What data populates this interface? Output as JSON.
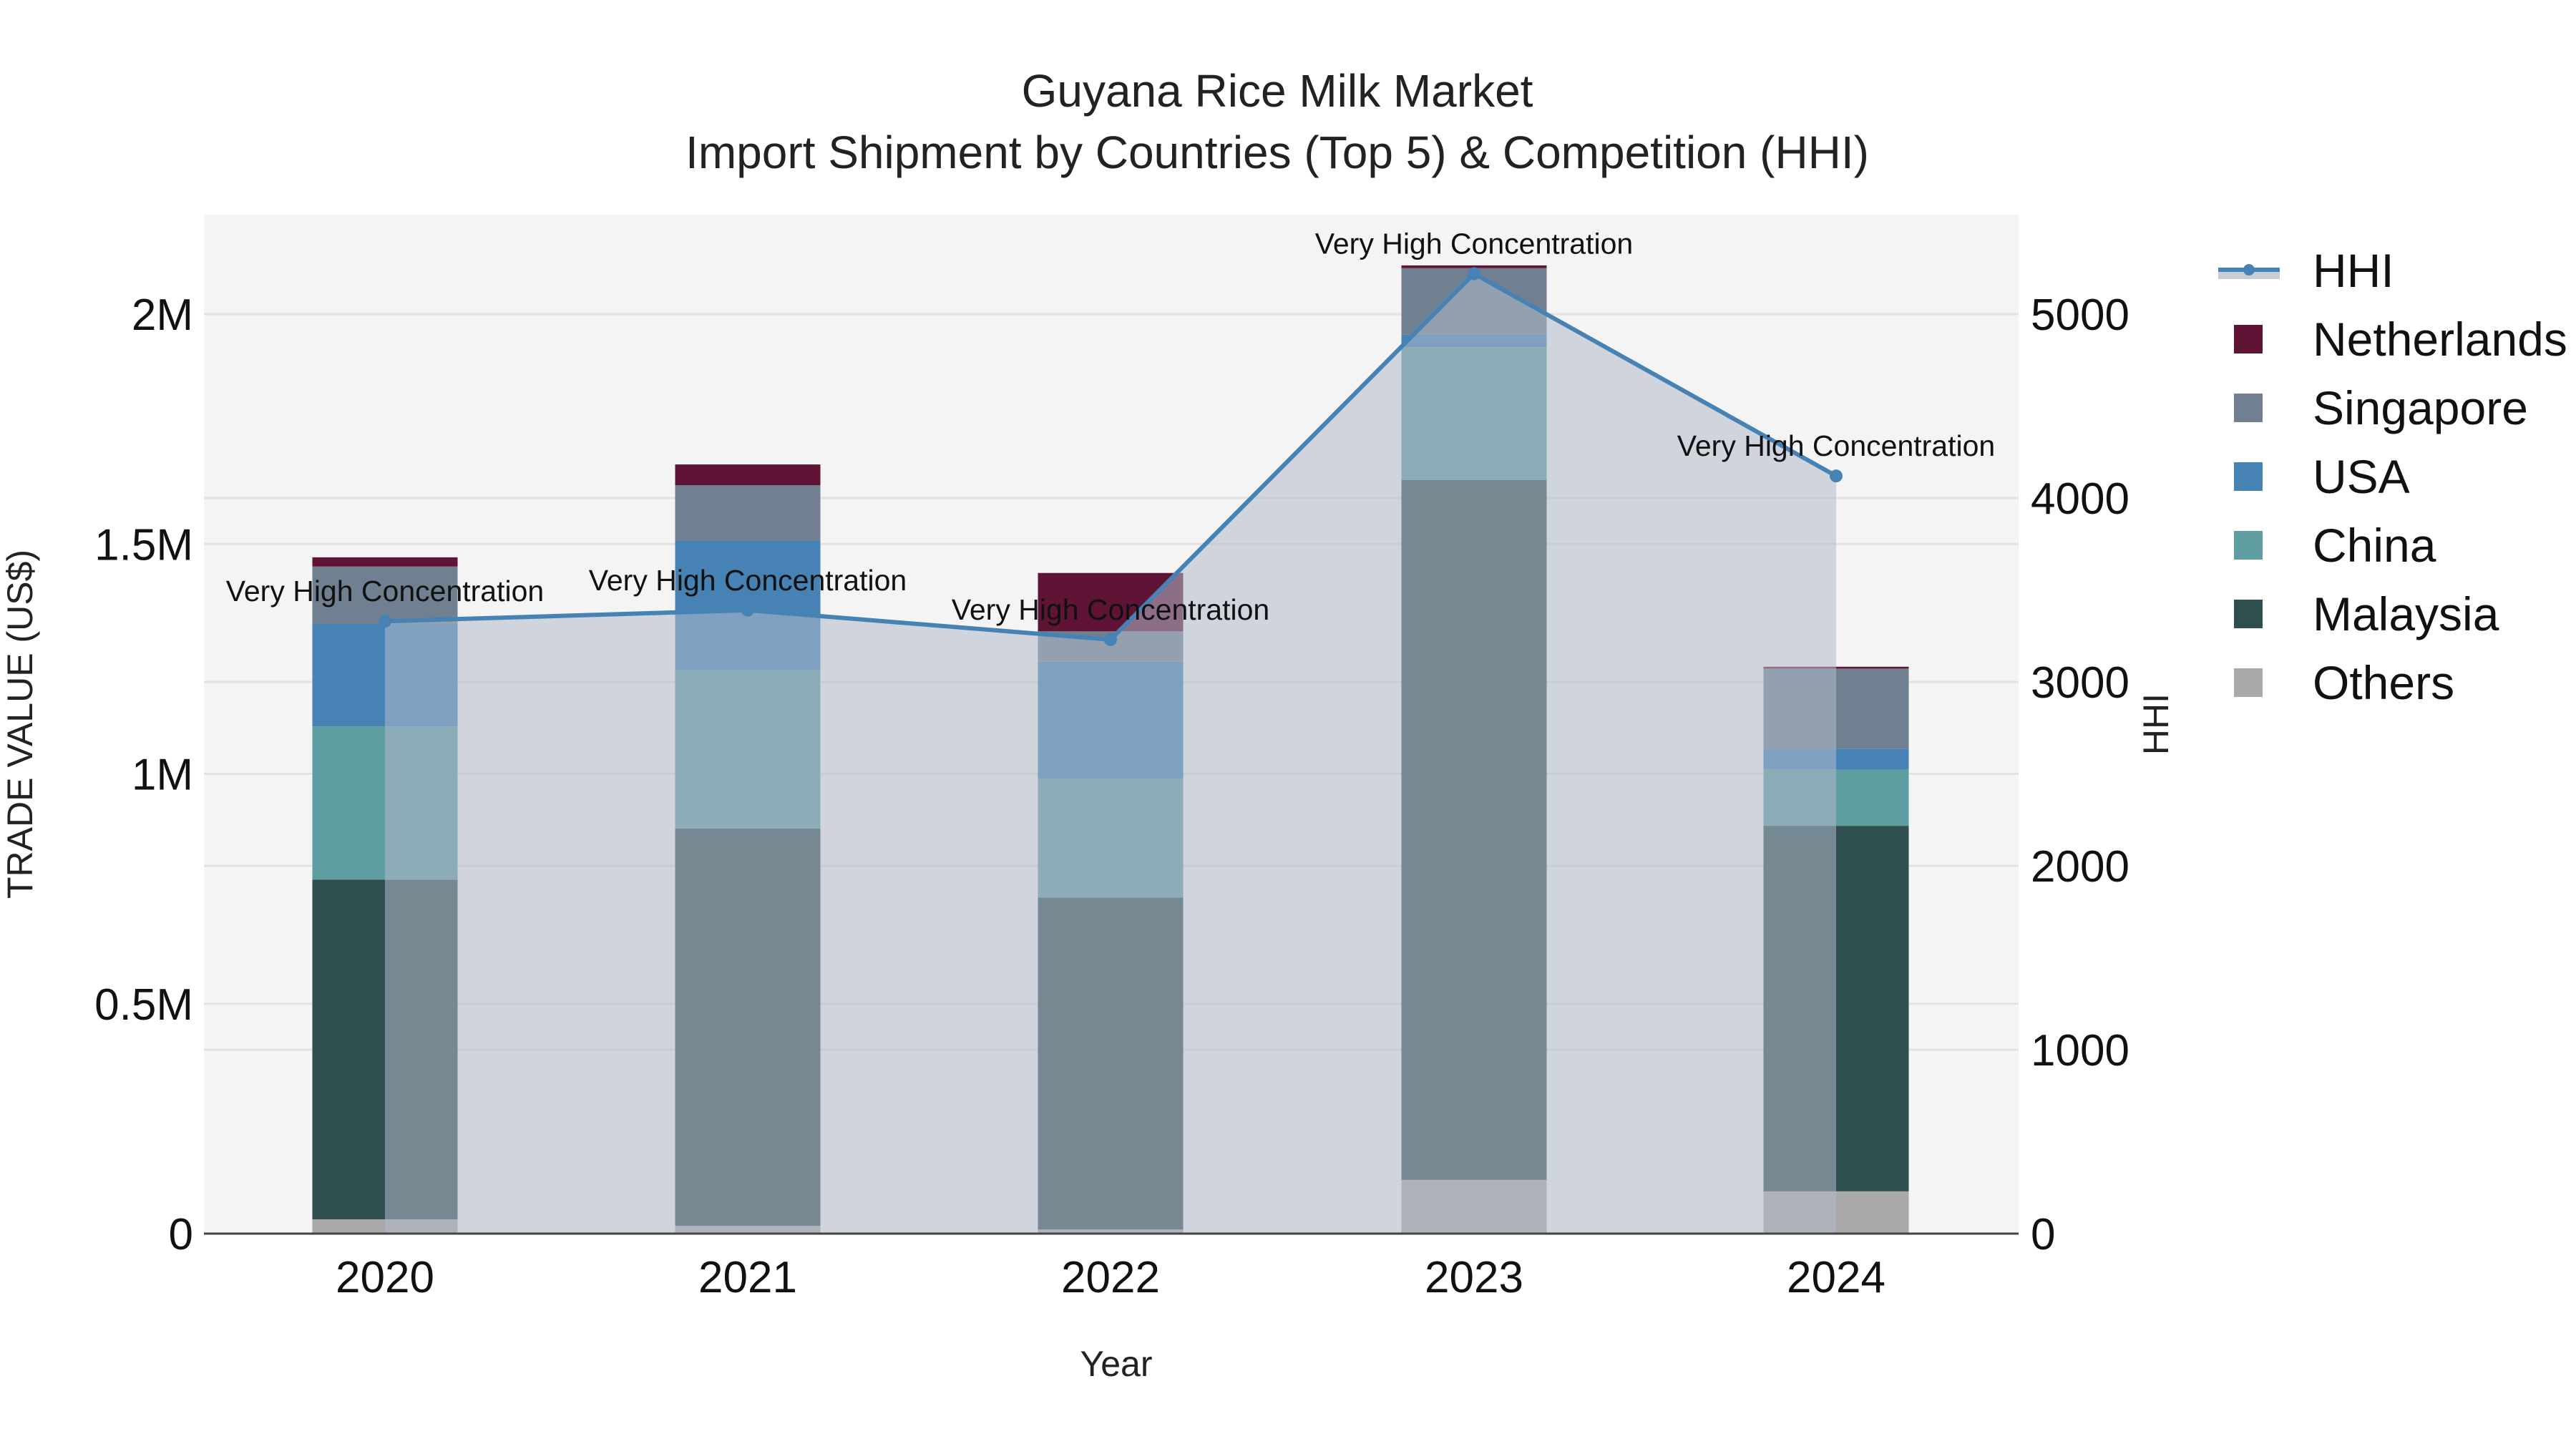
{
  "header": {
    "title": "Guyana Rice Milk Market",
    "subtitle": "Import Shipment by Countries (Top 5) & Competition (HHI)"
  },
  "axes": {
    "x_label": "Year",
    "y_left_label": "TRADE VALUE (US$)",
    "y_right_label": "HHI",
    "y_left_ticks": [
      "0",
      "0.5M",
      "1M",
      "1.5M",
      "2M"
    ],
    "y_right_ticks": [
      "0",
      "1000",
      "2000",
      "3000",
      "4000",
      "5000"
    ],
    "x_ticks": [
      "2020",
      "2021",
      "2022",
      "2023",
      "2024"
    ]
  },
  "legend": [
    {
      "label": "HHI",
      "type": "line",
      "color": "#4682b4"
    },
    {
      "label": "Netherlands",
      "type": "bar",
      "color": "#5f1335"
    },
    {
      "label": "Singapore",
      "type": "bar",
      "color": "#708090"
    },
    {
      "label": "USA",
      "type": "bar",
      "color": "#4682b4"
    },
    {
      "label": "China",
      "type": "bar",
      "color": "#5f9ea0"
    },
    {
      "label": "Malaysia",
      "type": "bar",
      "color": "#2f4f4f"
    },
    {
      "label": "Others",
      "type": "bar",
      "color": "#a9a9a9"
    }
  ],
  "annotation_label": "Very High Concentration",
  "chart_data": {
    "type": "bar",
    "stacked": true,
    "title": "Guyana Rice Milk Market — Import Shipment by Countries (Top 5) & Competition (HHI)",
    "xlabel": "Year",
    "ylabel": "TRADE VALUE (US$)",
    "y2label": "HHI",
    "ylim": [
      0,
      2200000
    ],
    "y2lim": [
      0,
      5500
    ],
    "grid": true,
    "legend_position": "right",
    "categories": [
      "2020",
      "2021",
      "2022",
      "2023",
      "2024"
    ],
    "series": [
      {
        "name": "Others",
        "color": "#a9a9a9",
        "values": [
          31000,
          17000,
          9000,
          117000,
          92000
        ]
      },
      {
        "name": "Malaysia",
        "color": "#2f4f4f",
        "values": [
          739000,
          864000,
          722000,
          1522000,
          795000
        ]
      },
      {
        "name": "China",
        "color": "#5f9ea0",
        "values": [
          333000,
          345000,
          259000,
          289000,
          122000
        ]
      },
      {
        "name": "USA",
        "color": "#4682b4",
        "values": [
          223000,
          282000,
          254000,
          27000,
          46000
        ]
      },
      {
        "name": "Singapore",
        "color": "#708090",
        "values": [
          125000,
          120000,
          66000,
          145000,
          174000
        ]
      },
      {
        "name": "Netherlands",
        "color": "#5f1335",
        "values": [
          20000,
          45000,
          127000,
          6000,
          4000
        ]
      }
    ],
    "line_series": {
      "name": "HHI",
      "axis": "right",
      "color": "#4682b4",
      "fill": "tozeroy",
      "values": [
        3330,
        3390,
        3230,
        5220,
        4120
      ],
      "annotations": [
        "Very High Concentration",
        "Very High Concentration",
        "Very High Concentration",
        "Very High Concentration",
        "Very High Concentration"
      ]
    },
    "totals": [
      1471000,
      1673000,
      1437000,
      2106000,
      1233000
    ]
  },
  "layout": {
    "plot_bg": "#f4f4f4",
    "area_fill": "rgba(176,186,203,0.55)"
  }
}
